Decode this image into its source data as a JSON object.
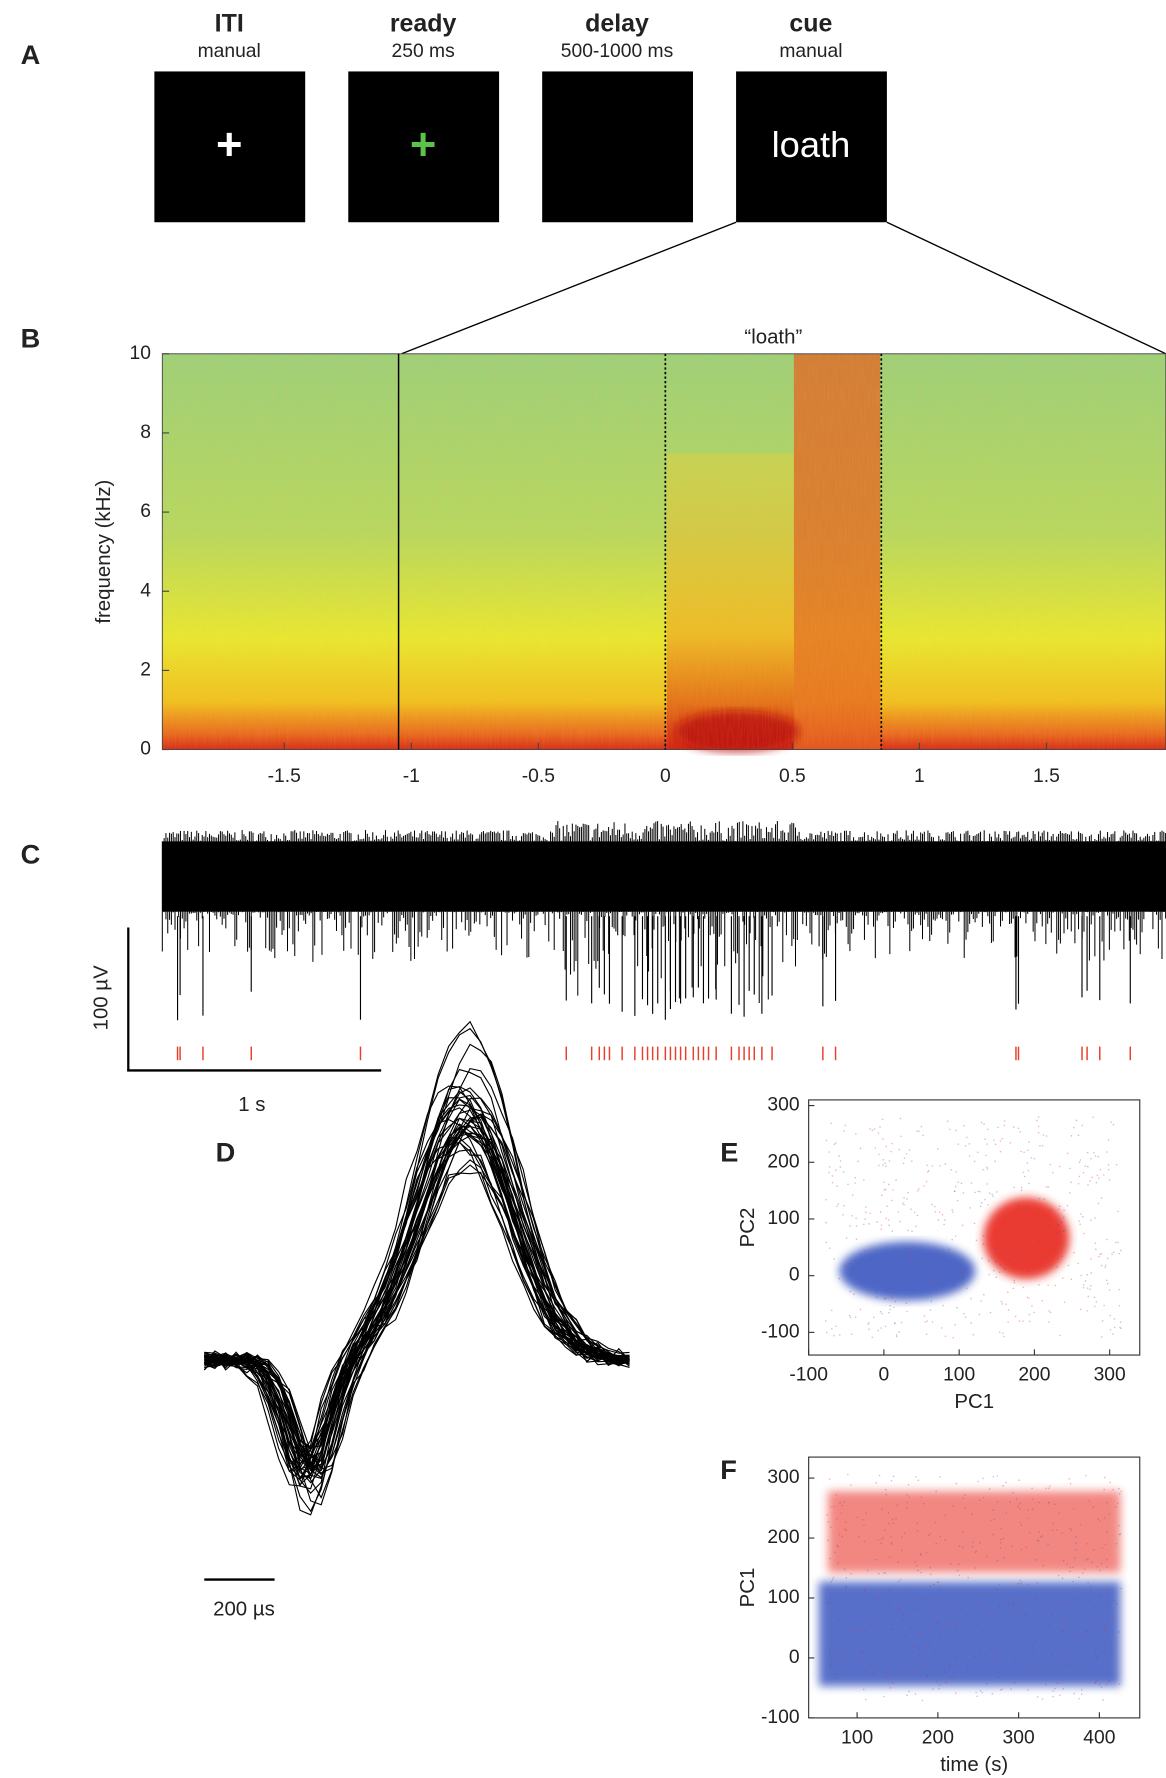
{
  "panel_labels": [
    "A",
    "B",
    "C",
    "D",
    "E",
    "F"
  ],
  "task": {
    "screens": [
      {
        "title": "ITI",
        "duration": "manual",
        "content": "+",
        "color": "#ffffff"
      },
      {
        "title": "ready",
        "duration": "250 ms",
        "content": "+",
        "color": "#5cc24a"
      },
      {
        "title": "delay",
        "duration": "500-1000 ms"
      },
      {
        "title": "cue",
        "duration": "manual",
        "content": "loath",
        "color": "#ffffff"
      }
    ]
  },
  "chart_data": [
    {
      "type": "spectrogram",
      "title": "“loath”",
      "y_label": "frequency (kHz)",
      "xlim": [
        -1.98,
        1.97
      ],
      "ylim": [
        0,
        10
      ],
      "xticks": [
        -1.5,
        -1,
        -0.5,
        0,
        0.5,
        1,
        1.5
      ],
      "yticks": [
        0,
        2,
        4,
        6,
        8,
        10
      ],
      "event_times": [
        -1.05,
        0,
        0.85
      ]
    },
    {
      "type": "raster",
      "xlim": [
        -1.98,
        1.97
      ],
      "color": "#e8402a",
      "spike_times": [
        -1.92,
        -1.91,
        -1.82,
        -1.63,
        -1.2,
        -0.39,
        -0.29,
        -0.26,
        -0.24,
        -0.22,
        -0.17,
        -0.12,
        -0.09,
        -0.07,
        -0.05,
        -0.03,
        0,
        0.02,
        0.04,
        0.06,
        0.08,
        0.11,
        0.13,
        0.15,
        0.17,
        0.2,
        0.26,
        0.29,
        0.31,
        0.33,
        0.35,
        0.38,
        0.42,
        0.62,
        0.67,
        1.38,
        1.39,
        1.64,
        1.66,
        1.71,
        1.83
      ],
      "scale_bars": [
        "100 µV",
        "1 s"
      ]
    },
    {
      "type": "waveforms",
      "scale_bar": "200 µs"
    },
    {
      "type": "scatter",
      "x_label": "PC1",
      "y_label": "PC2",
      "xlim": [
        -100,
        340
      ],
      "ylim": [
        -140,
        310
      ],
      "xticks": [
        -100,
        0,
        100,
        200,
        300
      ],
      "yticks": [
        -100,
        0,
        100,
        200,
        300
      ],
      "colors": [
        "#3a56c0",
        "#e8281c"
      ]
    },
    {
      "type": "scatter",
      "x_label": "time (s)",
      "y_label": "PC1",
      "xlim": [
        40,
        450
      ],
      "ylim": [
        -100,
        335
      ],
      "xticks": [
        100,
        200,
        300,
        400
      ],
      "yticks": [
        -100,
        0,
        100,
        200,
        300
      ],
      "colors": [
        "#3a56c0",
        "#e8281c"
      ]
    }
  ]
}
